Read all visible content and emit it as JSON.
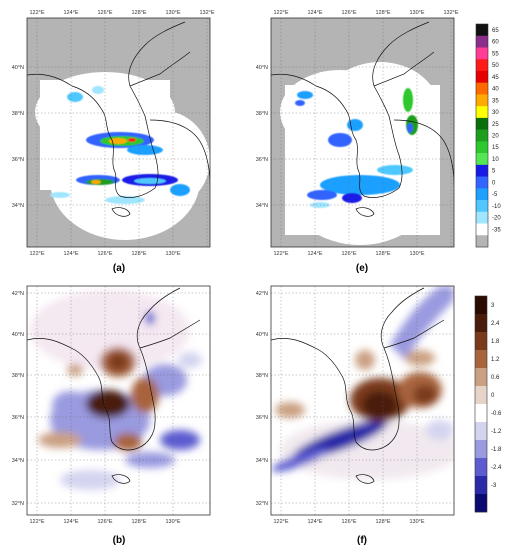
{
  "panels": [
    {
      "id": "a",
      "caption": "(a)",
      "kind": "radar",
      "lon_ticks": [
        "122°E",
        "124°E",
        "126°E",
        "128°E",
        "130°E",
        "132°E"
      ],
      "lon_ticks_bottom": [
        "122°E",
        "124°E",
        "126°E",
        "128°E",
        "130°E"
      ],
      "lat_ticks": [
        "40°N",
        "38°N",
        "36°N",
        "34°N"
      ]
    },
    {
      "id": "e",
      "caption": "(e)",
      "kind": "radar",
      "lon_ticks": [
        "122°E",
        "124°E",
        "126°E",
        "128°E",
        "130°E",
        "132°E"
      ],
      "lon_ticks_bottom": [
        "122°E",
        "124°E",
        "126°E",
        "128°E",
        "130°E"
      ],
      "lat_ticks": [
        "40°N",
        "38°N",
        "36°N",
        "34°N"
      ]
    },
    {
      "id": "b",
      "caption": "(b)",
      "kind": "anomaly",
      "lon_ticks_bottom": [
        "122°E",
        "124°E",
        "126°E",
        "128°E",
        "130°E"
      ],
      "lat_ticks": [
        "42°N",
        "40°N",
        "38°N",
        "36°N",
        "34°N",
        "32°N"
      ]
    },
    {
      "id": "f",
      "caption": "(f)",
      "kind": "anomaly",
      "lon_ticks_bottom": [
        "122°E",
        "124°E",
        "126°E",
        "128°E",
        "130°E"
      ],
      "lat_ticks": [
        "42°N",
        "40°N",
        "38°N",
        "36°N",
        "34°N",
        "32°N"
      ]
    }
  ],
  "chart_data": [
    {
      "type": "heatmap",
      "name": "radar reflectivity colorbar",
      "colorbar": {
        "labels": [
          "65",
          "60",
          "55",
          "50",
          "45",
          "40",
          "35",
          "30",
          "25",
          "20",
          "15",
          "10",
          "5",
          "0",
          "-5",
          "-10",
          "-20",
          "-35"
        ],
        "colors": [
          "#111111",
          "#8b2d8b",
          "#ff3c96",
          "#ff1a1a",
          "#e60000",
          "#ff6a00",
          "#ffaa00",
          "#ffff00",
          "#0a6e0a",
          "#1e9e1e",
          "#2dc82d",
          "#55e655",
          "#1a1ae6",
          "#3264ff",
          "#1ea0ff",
          "#50c8ff",
          "#a0e6ff",
          "#ffffff",
          "#b4b4b4"
        ]
      }
    },
    {
      "type": "heatmap",
      "name": "anomaly colorbar",
      "colorbar": {
        "labels": [
          "3",
          "2.4",
          "1.8",
          "1.2",
          "0.6",
          "0",
          "-0.6",
          "-1.2",
          "-1.8",
          "-2.4",
          "-3"
        ],
        "colors": [
          "#2b0a00",
          "#4a1c0a",
          "#7a3b1a",
          "#a8643c",
          "#caa082",
          "#e6d4c8",
          "#ffffff",
          "#d4d4f0",
          "#9a9ae0",
          "#5c5cd0",
          "#2a2aa8",
          "#0a0a70"
        ]
      }
    }
  ]
}
